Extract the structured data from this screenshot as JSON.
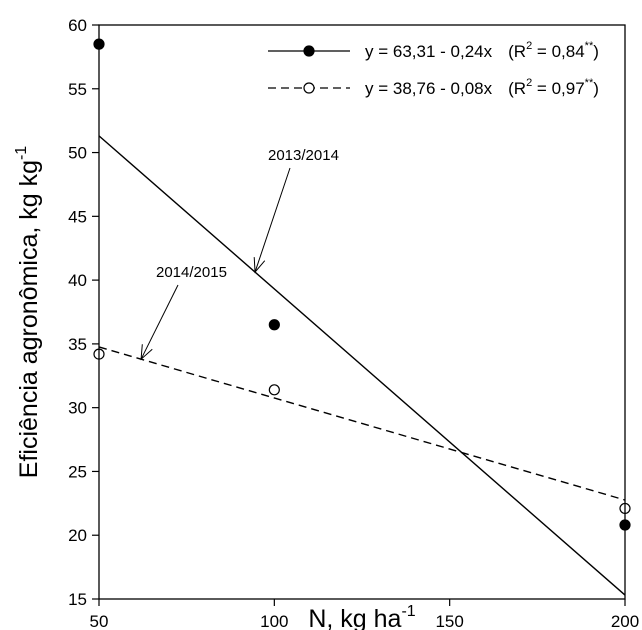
{
  "chart_data": {
    "type": "scatter",
    "xlabel": "N, kg ha",
    "xlabel_sup": "-1",
    "ylabel": "Eficiência agronômica, kg kg",
    "ylabel_sup": "-1",
    "xlim": [
      50,
      200
    ],
    "ylim": [
      15,
      60
    ],
    "xticks": [
      50,
      100,
      150,
      200
    ],
    "yticks": [
      15,
      20,
      25,
      30,
      35,
      40,
      45,
      50,
      55,
      60
    ],
    "grid": false,
    "legend_position": "top-right",
    "series": [
      {
        "marker": "filled-circle",
        "line_style": "solid",
        "x": [
          50,
          100,
          200
        ],
        "y": [
          58.5,
          36.5,
          20.8
        ],
        "fit": {
          "intercept": 63.31,
          "slope": -0.24
        },
        "legend_equation": "y = 63,31 - 0,24x",
        "legend_r2_prefix": "(R",
        "legend_r2_sup": "2",
        "legend_r2_value": " = 0,84",
        "legend_sig": "**",
        "legend_close": ")"
      },
      {
        "marker": "open-circle",
        "line_style": "dashed",
        "x": [
          50,
          100,
          200
        ],
        "y": [
          34.2,
          31.4,
          22.1
        ],
        "fit": {
          "intercept": 38.76,
          "slope": -0.08
        },
        "legend_equation": "y = 38,76 - 0,08x",
        "legend_r2_prefix": "(R",
        "legend_r2_sup": "2",
        "legend_r2_value": " = 0,97",
        "legend_sig": "**",
        "legend_close": ")"
      }
    ],
    "annotations": [
      {
        "text": "2013/2014",
        "series_index": 0,
        "arrow_x": 94.5
      },
      {
        "text": "2014/2015",
        "series_index": 1,
        "arrow_x": 62
      }
    ]
  }
}
